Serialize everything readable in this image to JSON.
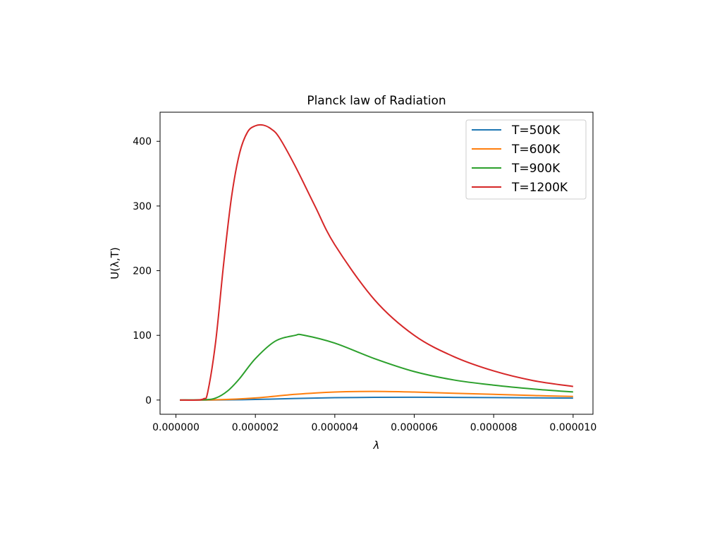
{
  "chart_data": {
    "type": "line",
    "title": "Planck law of Radiation",
    "xlabel": "λ",
    "ylabel": "U(λ,T)",
    "xlim": [
      -4e-07,
      1.05e-05
    ],
    "ylim": [
      -22,
      445
    ],
    "x_ticks": [
      0.0,
      2e-06,
      4e-06,
      6e-06,
      8e-06,
      1e-05
    ],
    "x_tick_labels": [
      "0.000000",
      "0.000002",
      "0.000004",
      "0.000006",
      "0.000008",
      "0.000010"
    ],
    "y_ticks": [
      0,
      100,
      200,
      300,
      400
    ],
    "y_tick_labels": [
      "0",
      "100",
      "200",
      "300",
      "400"
    ],
    "grid": false,
    "legend_position": "top-right",
    "series": [
      {
        "name": "T=500K",
        "color": "#1f77b4",
        "x": [
          1e-07,
          1e-06,
          2e-06,
          3e-06,
          4e-06,
          5e-06,
          6e-06,
          7e-06,
          8e-06,
          9e-06,
          1e-05
        ],
        "y": [
          0,
          0.1,
          0.9,
          2.4,
          3.6,
          4.2,
          4.3,
          4.1,
          3.8,
          3.4,
          3.0
        ]
      },
      {
        "name": "T=600K",
        "color": "#ff7f0e",
        "x": [
          1e-07,
          1e-06,
          2e-06,
          3e-06,
          4e-06,
          5e-06,
          6e-06,
          7e-06,
          8e-06,
          9e-06,
          1e-05
        ],
        "y": [
          0,
          0.3,
          3.2,
          8.8,
          12.4,
          13.3,
          12.3,
          10.5,
          8.8,
          7.0,
          5.5
        ]
      },
      {
        "name": "T=900K",
        "color": "#2ca02c",
        "x": [
          1e-07,
          7e-07,
          1e-06,
          1.3e-06,
          1.6e-06,
          2e-06,
          2.5e-06,
          3e-06,
          3.2e-06,
          4e-06,
          5e-06,
          6e-06,
          7e-06,
          8e-06,
          9e-06,
          1e-05
        ],
        "y": [
          0,
          0.5,
          3,
          14,
          33,
          64,
          91,
          100,
          100.5,
          88,
          64,
          44,
          31,
          23,
          17,
          12.5
        ]
      },
      {
        "name": "T=1200K",
        "color": "#d62728",
        "x": [
          1e-07,
          5e-07,
          7e-07,
          8e-07,
          1e-06,
          1.2e-06,
          1.4e-06,
          1.6e-06,
          1.8e-06,
          2e-06,
          2.2e-06,
          2.4e-06,
          2.6e-06,
          3e-06,
          3.5e-06,
          4e-06,
          5e-06,
          6e-06,
          7e-06,
          8e-06,
          9e-06,
          1e-05
        ],
        "y": [
          0,
          0,
          2,
          12,
          90,
          210,
          314,
          381,
          414,
          424,
          425,
          419,
          406,
          362,
          300,
          240,
          155,
          100,
          67,
          45,
          30,
          21
        ]
      }
    ]
  }
}
